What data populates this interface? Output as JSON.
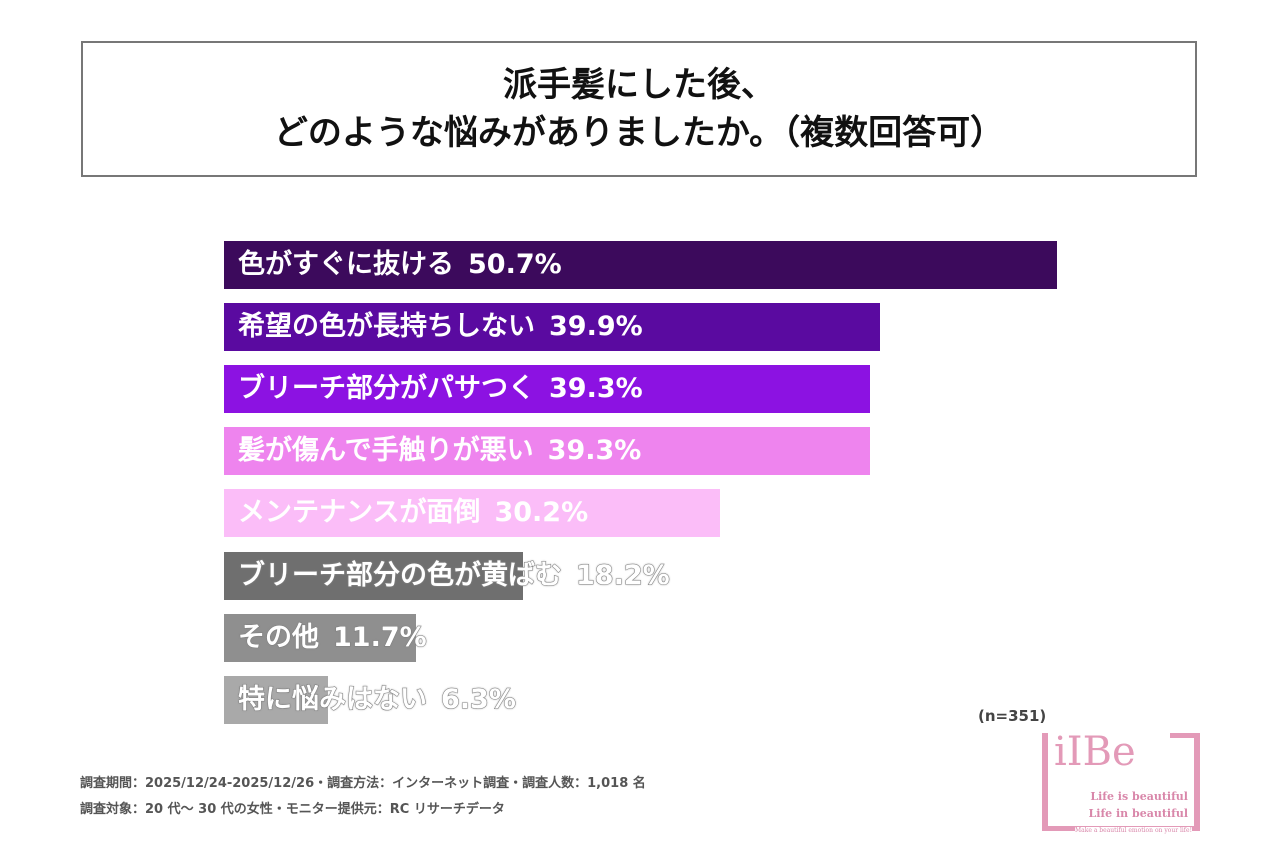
{
  "chart_data": {
    "type": "bar",
    "orientation": "horizontal",
    "title_lines": [
      "派手髪にした後、",
      "どのような悩みがありましたか。（複数回答可）"
    ],
    "categories": [
      "色がすぐに抜ける",
      "希望の色が長持ちしない",
      "ブリーチ部分がパサつく",
      "髪が傷んで手触りが悪い",
      "メンテナンスが面倒",
      "ブリーチ部分の色が黄ばむ",
      "その他",
      "特に悩みはない"
    ],
    "values": [
      50.7,
      39.9,
      39.3,
      39.3,
      30.2,
      18.2,
      11.7,
      6.3
    ],
    "value_labels": [
      "50.7%",
      "39.9%",
      "39.3%",
      "39.3%",
      "30.2%",
      "18.2%",
      "11.7%",
      "6.3%"
    ],
    "colors": [
      "#3c0a5c",
      "#5a0aa0",
      "#8c12e2",
      "#ee84ee",
      "#fbbdf8",
      "#6f6f6f",
      "#8f8f8f",
      "#a9a9a9"
    ],
    "xlim": [
      0,
      50.7
    ],
    "sample": "(n=351)"
  },
  "footer": [
    "調査期間：2025/12/24-2025/12/26・調査方法：インターネット調査・調査人数：1,018 名",
    "調査対象：20 代～ 30 代の女性・モニター提供元：RC リサーチデータ"
  ],
  "logo": {
    "name": "iIBe",
    "line1": "Life is beautiful",
    "line2": "Life in beautiful",
    "tagline": "Make a beautiful emotion on your life!"
  }
}
